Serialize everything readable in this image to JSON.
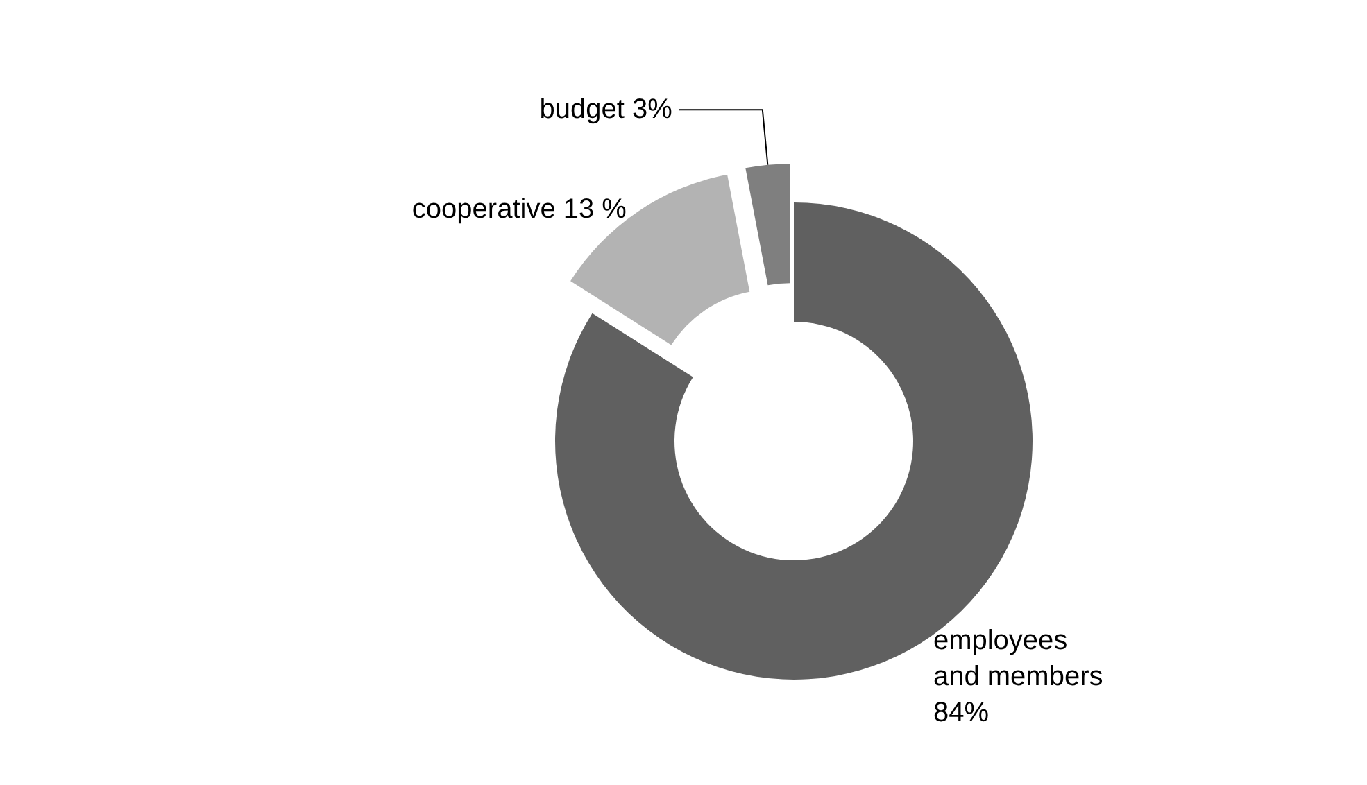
{
  "chart_data": {
    "type": "donut",
    "categories": [
      "employees and members",
      "cooperative",
      "budget"
    ],
    "values": [
      84,
      13,
      3
    ],
    "colors": [
      "#606060",
      "#b3b3b3",
      "#7f7f7f"
    ],
    "value_labels": [
      "84%",
      "13 %",
      "3%"
    ],
    "legend": false
  }
}
